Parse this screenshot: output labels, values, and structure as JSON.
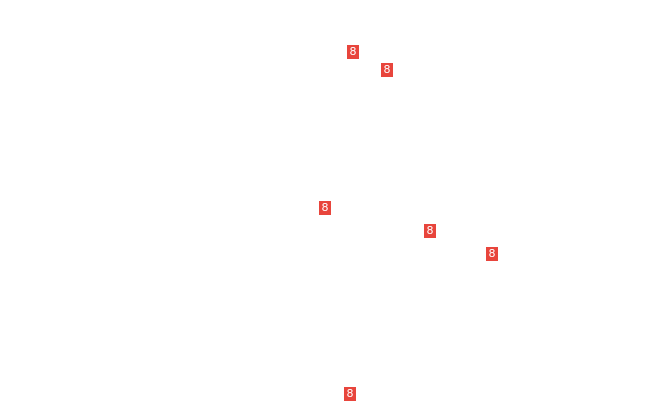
{
  "badge_color": "#e8453c",
  "badges": [
    {
      "label": "8"
    },
    {
      "label": "8"
    },
    {
      "label": "8"
    },
    {
      "label": "8"
    },
    {
      "label": "8"
    },
    {
      "label": "8"
    }
  ]
}
